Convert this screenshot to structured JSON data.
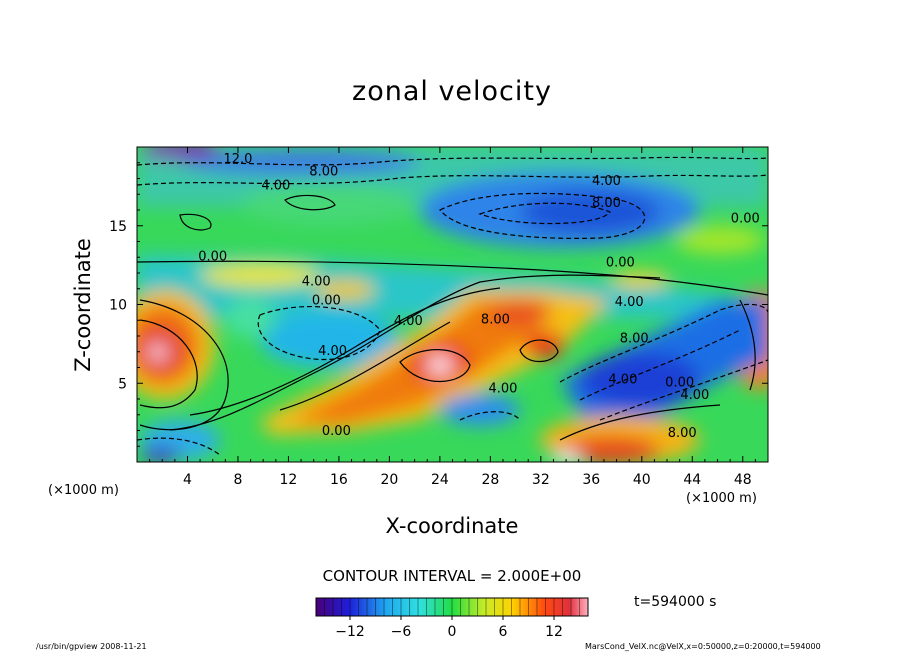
{
  "chart_data": {
    "type": "heatmap",
    "title": "zonal velocity",
    "xlabel": "X-coordinate",
    "ylabel": "Z-coordinate",
    "x_unit": "(×1000 m)",
    "xlim": [
      0,
      50
    ],
    "ylim": [
      0,
      20
    ],
    "x_ticks": [
      4,
      8,
      12,
      16,
      20,
      24,
      28,
      32,
      36,
      40,
      44,
      48
    ],
    "y_ticks": [
      5,
      10,
      15
    ],
    "colorbar": {
      "min": -16,
      "max": 16,
      "ticks": [
        -12,
        -6,
        0,
        6,
        12
      ]
    },
    "contour_interval": "CONTOUR INTERVAL = 2.000E+00",
    "contour_labels": [
      {
        "text": "12.0",
        "x": 8,
        "y": 19
      },
      {
        "text": "8.00",
        "x": 14.8,
        "y": 18.2
      },
      {
        "text": "4.00",
        "x": 11,
        "y": 17.3
      },
      {
        "text": "4.00",
        "x": 37.2,
        "y": 17.6
      },
      {
        "text": "8.00",
        "x": 37.2,
        "y": 16.2
      },
      {
        "text": "0.00",
        "x": 48.2,
        "y": 15.2
      },
      {
        "text": "0.00",
        "x": 6,
        "y": 12.8
      },
      {
        "text": "4.00",
        "x": 14.2,
        "y": 11.2
      },
      {
        "text": "0.00",
        "x": 15,
        "y": 10
      },
      {
        "text": "4.00",
        "x": 21.5,
        "y": 8.7
      },
      {
        "text": "8.00",
        "x": 28.4,
        "y": 8.8
      },
      {
        "text": "4.00",
        "x": 15.5,
        "y": 6.8
      },
      {
        "text": "0.00",
        "x": 38.3,
        "y": 12.4
      },
      {
        "text": "4.00",
        "x": 39,
        "y": 9.9
      },
      {
        "text": "8.00",
        "x": 39.4,
        "y": 7.6
      },
      {
        "text": "4.00",
        "x": 29,
        "y": 4.4
      },
      {
        "text": "4.00",
        "x": 38.5,
        "y": 5.0
      },
      {
        "text": "0.00",
        "x": 43,
        "y": 4.8
      },
      {
        "text": "4.00",
        "x": 44.2,
        "y": 4.0
      },
      {
        "text": "8.00",
        "x": 43.2,
        "y": 1.6
      },
      {
        "text": "0.00",
        "x": 15.8,
        "y": 1.7
      }
    ],
    "time": "t=594000 s"
  },
  "footer": {
    "left": "/usr/bin/gpview   2008-11-21",
    "right": "MarsCond_VelX.nc@VelX,x=0:50000,z=0:20000,t=594000"
  }
}
